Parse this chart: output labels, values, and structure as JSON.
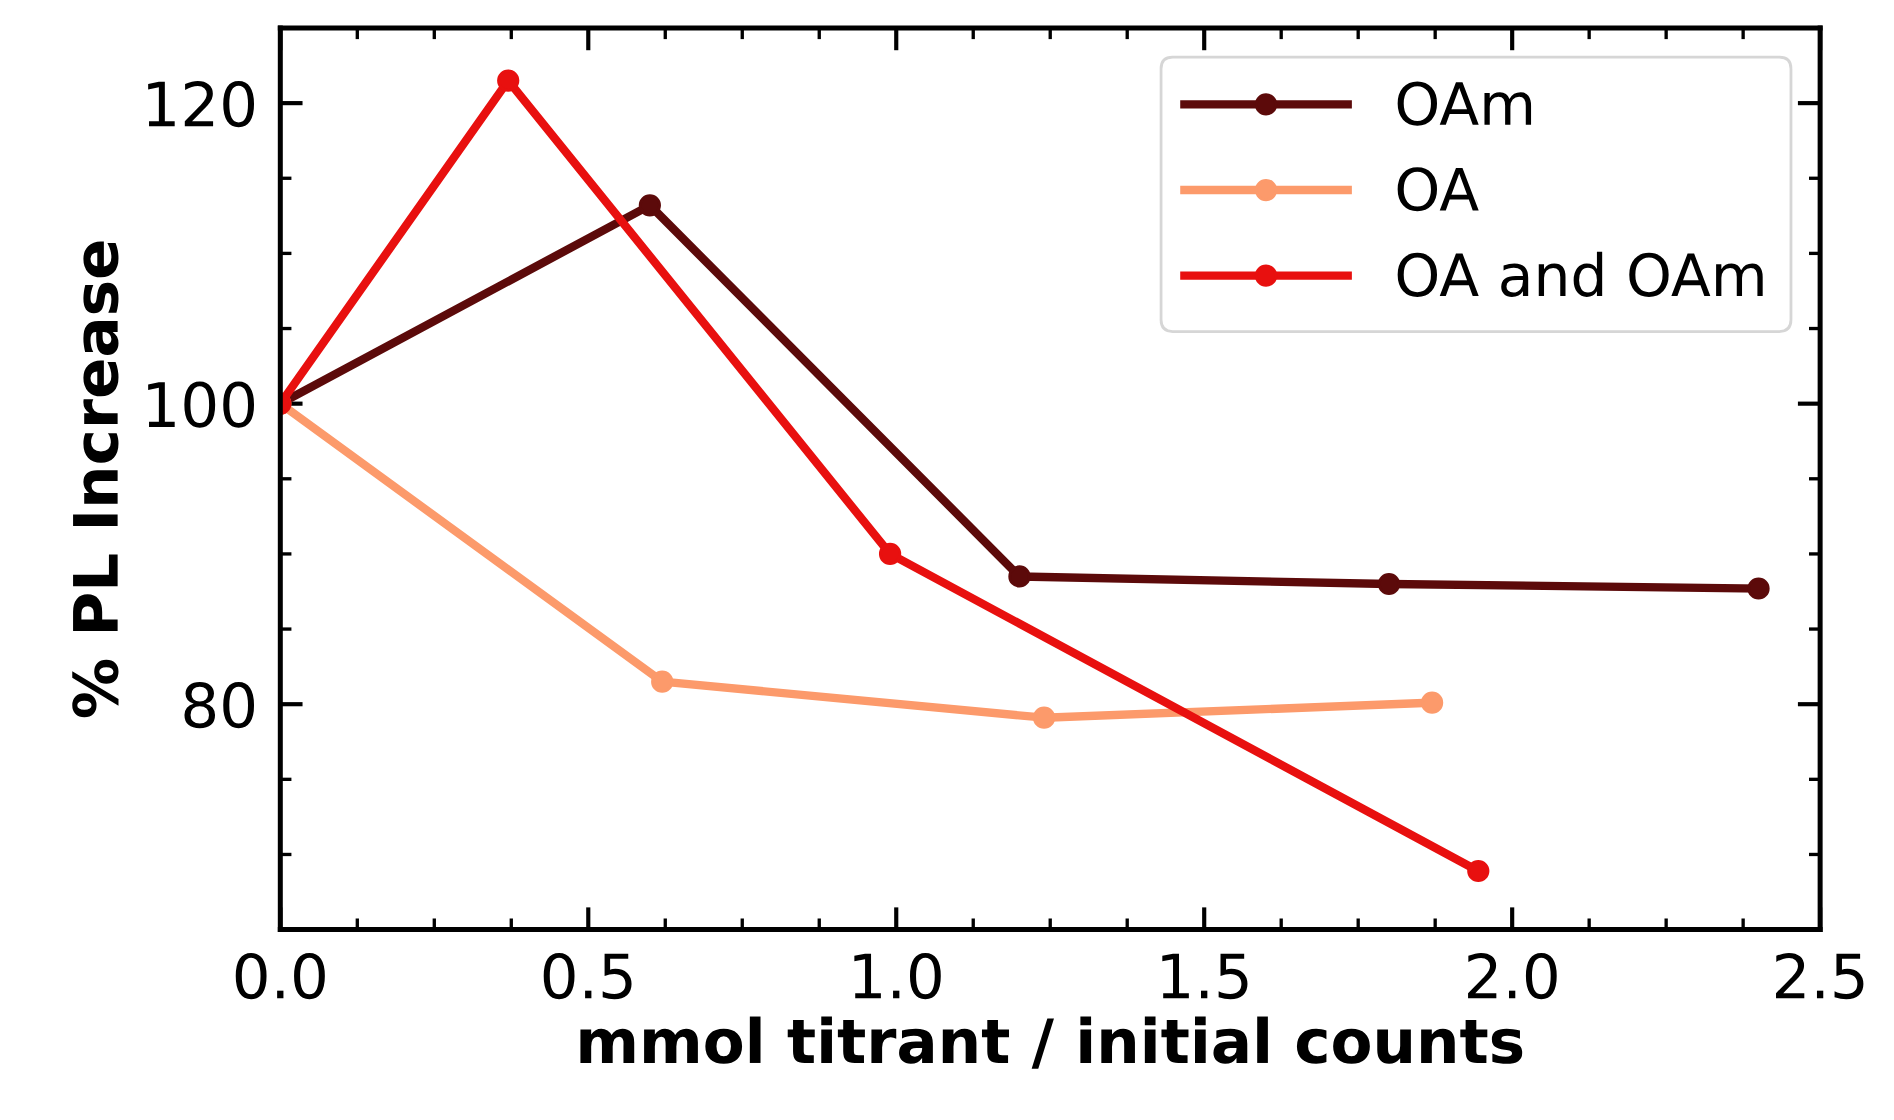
{
  "chart_data": {
    "type": "line",
    "xlabel": "mmol titrant / initial counts",
    "ylabel": "% PL Increase",
    "xlim": [
      0,
      2.5
    ],
    "xticks": [
      {
        "value": 0,
        "label": "0.0"
      },
      {
        "value": 0.5,
        "label": "0.5"
      },
      {
        "value": 1,
        "label": "1.0"
      },
      {
        "value": 1.5,
        "label": "1.5"
      },
      {
        "value": 2,
        "label": "2.0"
      },
      {
        "value": 2.5,
        "label": "2.5"
      }
    ],
    "ylim": [
      65,
      125
    ],
    "yticks": [
      80,
      100,
      120
    ],
    "marker": "circle",
    "legend": "top right",
    "grid": false,
    "series": [
      {
        "name": "OAm",
        "color": "#5c0a0a",
        "x": [
          0,
          0.6,
          1.2,
          1.8,
          2.4
        ],
        "values": [
          100,
          113.2,
          88.5,
          88.0,
          87.7
        ]
      },
      {
        "name": "OA",
        "color": "#fc9a6b",
        "x": [
          0,
          0.62,
          1.24,
          1.87
        ],
        "values": [
          100,
          81.5,
          79.1,
          80.1
        ]
      },
      {
        "name": "OA and OAm",
        "color": "#e8100f",
        "x": [
          0,
          0.37,
          0.99,
          1.945
        ],
        "values": [
          100,
          121.5,
          90,
          68.9
        ]
      }
    ]
  }
}
